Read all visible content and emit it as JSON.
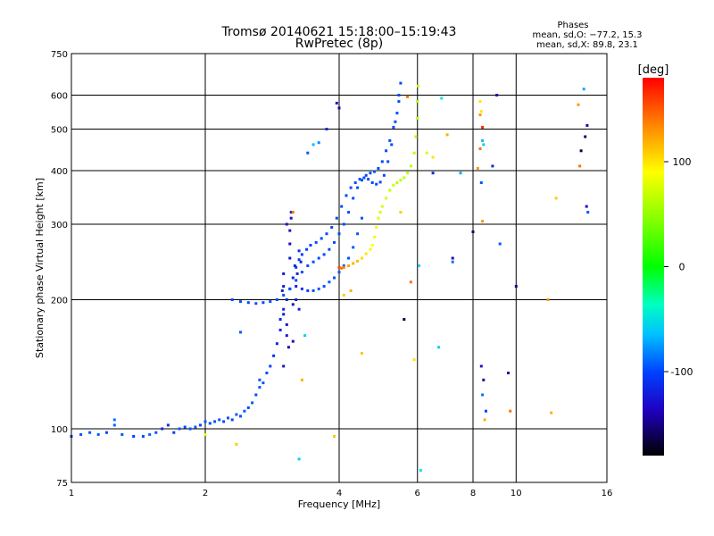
{
  "chart_data": {
    "type": "scatter",
    "title": "Tromsø 20140621 15:18:00–15:19:43",
    "subtitle": "RwPretec (8p)",
    "xlabel": "Frequency [MHz]",
    "ylabel": "Stationary phase Virtual Height [km]",
    "x_scale": "log",
    "y_scale": "log",
    "xlim": [
      1,
      16
    ],
    "ylim": [
      75,
      750
    ],
    "x_ticks": [
      1,
      2,
      4,
      6,
      8,
      10,
      16
    ],
    "x_tick_labels": [
      "1",
      "2",
      "4",
      "6",
      "8",
      "10",
      "16"
    ],
    "y_ticks": [
      75,
      100,
      200,
      300,
      400,
      500,
      600,
      750
    ],
    "y_tick_labels": [
      "75",
      "100",
      "200",
      "300",
      "400",
      "500",
      "600",
      "750"
    ],
    "grid": true,
    "stats": {
      "header": "Phases",
      "line1": "mean, sd,O: −77.2, 15.3",
      "line2": "mean, sd,X:  89.8, 23.1"
    },
    "colorbar": {
      "label": "[deg]",
      "range": [
        -180,
        180
      ],
      "ticks": [
        100,
        0,
        -100
      ],
      "tick_labels": [
        "100",
        "0",
        "-100"
      ]
    },
    "series_o_low": [
      [
        1.0,
        96,
        -95
      ],
      [
        1.05,
        97,
        -90
      ],
      [
        1.1,
        98,
        -92
      ],
      [
        1.15,
        97,
        -88
      ],
      [
        1.2,
        98,
        -95
      ],
      [
        1.25,
        102,
        -85
      ],
      [
        1.3,
        97,
        -92
      ],
      [
        1.38,
        96,
        -100
      ],
      [
        1.45,
        96,
        -95
      ],
      [
        1.5,
        97,
        -85
      ],
      [
        1.55,
        98,
        -92
      ],
      [
        1.6,
        100,
        -110
      ],
      [
        1.65,
        102,
        -105
      ],
      [
        1.7,
        98,
        -100
      ],
      [
        1.75,
        100,
        -90
      ],
      [
        1.8,
        101,
        -95
      ],
      [
        1.85,
        100,
        -92
      ],
      [
        1.9,
        101,
        -88
      ],
      [
        1.95,
        102,
        -95
      ],
      [
        2.0,
        104,
        -90
      ],
      [
        2.05,
        103,
        -95
      ],
      [
        2.1,
        104,
        -92
      ],
      [
        2.15,
        105,
        -90
      ],
      [
        2.2,
        104,
        -95
      ],
      [
        2.25,
        106,
        -92
      ],
      [
        2.3,
        105,
        -95
      ],
      [
        2.35,
        108,
        -90
      ],
      [
        2.4,
        107,
        -92
      ],
      [
        2.45,
        110,
        -90
      ],
      [
        2.5,
        112,
        -95
      ],
      [
        2.55,
        115,
        -90
      ],
      [
        2.6,
        120,
        -95
      ],
      [
        2.65,
        125,
        -90
      ],
      [
        2.7,
        128,
        -92
      ],
      [
        2.75,
        135,
        -95
      ],
      [
        2.8,
        140,
        -100
      ],
      [
        2.85,
        148,
        -105
      ],
      [
        2.9,
        158,
        -110
      ],
      [
        2.95,
        170,
        -110
      ],
      [
        3.0,
        185,
        -115
      ],
      [
        3.05,
        200,
        -110
      ],
      [
        3.1,
        212,
        -115
      ],
      [
        3.15,
        225,
        -110
      ],
      [
        3.2,
        238,
        -100
      ],
      [
        3.25,
        248,
        -100
      ],
      [
        3.3,
        255,
        -100
      ],
      [
        3.38,
        262,
        -100
      ],
      [
        3.45,
        268,
        -98
      ],
      [
        3.55,
        272,
        -95
      ],
      [
        3.65,
        278,
        -95
      ],
      [
        3.75,
        285,
        -95
      ],
      [
        3.85,
        295,
        -95
      ],
      [
        3.95,
        310,
        -95
      ],
      [
        4.05,
        330,
        -95
      ],
      [
        4.15,
        350,
        -95
      ],
      [
        4.25,
        365,
        -95
      ],
      [
        4.35,
        375,
        -92
      ],
      [
        4.45,
        382,
        -95
      ],
      [
        4.55,
        385,
        -95
      ],
      [
        4.65,
        382,
        -95
      ],
      [
        4.75,
        375,
        -95
      ],
      [
        4.85,
        372,
        -95
      ],
      [
        4.95,
        376,
        -95
      ],
      [
        5.05,
        390,
        -95
      ],
      [
        5.15,
        420,
        -95
      ],
      [
        5.25,
        460,
        -95
      ],
      [
        5.35,
        520,
        -95
      ],
      [
        5.45,
        580,
        -95
      ],
      [
        5.5,
        640,
        -95
      ]
    ],
    "series_o_mid": [
      [
        2.3,
        200,
        -95
      ],
      [
        2.4,
        198,
        -92
      ],
      [
        2.5,
        197,
        -95
      ],
      [
        2.6,
        196,
        -92
      ],
      [
        2.7,
        197,
        -95
      ],
      [
        2.8,
        198,
        -92
      ],
      [
        2.9,
        200,
        -95
      ],
      [
        3.0,
        205,
        -95
      ],
      [
        3.1,
        212,
        -95
      ],
      [
        3.2,
        222,
        -95
      ],
      [
        3.3,
        232,
        -95
      ],
      [
        3.4,
        240,
        -95
      ],
      [
        3.5,
        245,
        -92
      ],
      [
        3.6,
        250,
        -95
      ],
      [
        3.7,
        255,
        -95
      ],
      [
        3.8,
        262,
        -95
      ],
      [
        3.9,
        272,
        -95
      ],
      [
        4.0,
        285,
        -95
      ],
      [
        4.1,
        300,
        -95
      ],
      [
        4.2,
        320,
        -95
      ],
      [
        4.3,
        345,
        -95
      ],
      [
        4.4,
        365,
        -95
      ],
      [
        4.5,
        380,
        -92
      ],
      [
        4.6,
        390,
        -95
      ],
      [
        4.7,
        395,
        -95
      ],
      [
        4.8,
        398,
        -95
      ],
      [
        4.9,
        405,
        -95
      ],
      [
        5.0,
        420,
        -95
      ],
      [
        5.1,
        445,
        -95
      ],
      [
        5.2,
        470,
        -95
      ],
      [
        5.3,
        505,
        -95
      ],
      [
        5.4,
        545,
        -95
      ],
      [
        5.45,
        600,
        -95
      ]
    ],
    "series_o_lower": [
      [
        3.2,
        215,
        -110
      ],
      [
        3.3,
        212,
        -105
      ],
      [
        3.4,
        210,
        -100
      ],
      [
        3.5,
        210,
        -95
      ],
      [
        3.6,
        212,
        -92
      ],
      [
        3.7,
        215,
        -90
      ],
      [
        3.8,
        220,
        -90
      ],
      [
        3.9,
        225,
        -92
      ],
      [
        4.0,
        232,
        -90
      ],
      [
        4.1,
        240,
        -90
      ],
      [
        4.2,
        250,
        -92
      ],
      [
        4.3,
        265,
        -90
      ],
      [
        4.4,
        285,
        -90
      ],
      [
        4.5,
        310,
        -92
      ]
    ],
    "series_spread": [
      [
        3.0,
        215,
        -115
      ],
      [
        3.0,
        230,
        -120
      ],
      [
        3.0,
        190,
        -110
      ],
      [
        3.05,
        175,
        -120
      ],
      [
        3.05,
        165,
        -115
      ],
      [
        3.1,
        250,
        -120
      ],
      [
        3.1,
        270,
        -125
      ],
      [
        3.1,
        290,
        -120
      ],
      [
        3.12,
        310,
        -120
      ],
      [
        3.12,
        320,
        -115
      ],
      [
        3.15,
        195,
        -120
      ],
      [
        3.15,
        160,
        -125
      ],
      [
        3.08,
        155,
        -125
      ],
      [
        3.18,
        240,
        -110
      ],
      [
        3.22,
        230,
        -110
      ],
      [
        3.25,
        260,
        -105
      ],
      [
        3.28,
        245,
        -110
      ],
      [
        3.05,
        300,
        -120
      ],
      [
        2.98,
        210,
        -118
      ],
      [
        3.0,
        140,
        -120
      ],
      [
        2.95,
        180,
        -110
      ],
      [
        3.2,
        200,
        -115
      ],
      [
        3.25,
        190,
        -112
      ]
    ],
    "series_x": [
      [
        4.0,
        238,
        160
      ],
      [
        4.05,
        237,
        150
      ],
      [
        4.1,
        238,
        145
      ],
      [
        4.2,
        240,
        135
      ],
      [
        4.3,
        243,
        130
      ],
      [
        4.4,
        246,
        125
      ],
      [
        4.5,
        250,
        115
      ],
      [
        4.6,
        256,
        110
      ],
      [
        4.7,
        262,
        105
      ],
      [
        4.75,
        268,
        100
      ],
      [
        4.8,
        280,
        95
      ],
      [
        4.85,
        295,
        90
      ],
      [
        4.9,
        310,
        85
      ],
      [
        4.95,
        320,
        80
      ],
      [
        5.0,
        330,
        80
      ],
      [
        5.1,
        345,
        80
      ],
      [
        5.2,
        360,
        75
      ],
      [
        5.3,
        370,
        75
      ],
      [
        5.4,
        375,
        70
      ],
      [
        5.5,
        380,
        70
      ],
      [
        5.6,
        385,
        75
      ],
      [
        5.7,
        395,
        70
      ],
      [
        5.8,
        410,
        70
      ],
      [
        5.9,
        440,
        70
      ],
      [
        5.95,
        480,
        70
      ],
      [
        6.0,
        530,
        65
      ],
      [
        6.0,
        580,
        65
      ],
      [
        6.02,
        630,
        70
      ]
    ],
    "series_scattered": [
      [
        1.25,
        105,
        -80
      ],
      [
        2.0,
        97,
        90
      ],
      [
        2.35,
        92,
        120
      ],
      [
        2.4,
        168,
        -90
      ],
      [
        2.65,
        130,
        -90
      ],
      [
        3.15,
        320,
        150
      ],
      [
        3.25,
        85,
        -40
      ],
      [
        3.3,
        130,
        130
      ],
      [
        3.35,
        165,
        -40
      ],
      [
        3.4,
        440,
        -90
      ],
      [
        3.5,
        460,
        -50
      ],
      [
        3.6,
        465,
        -70
      ],
      [
        3.75,
        500,
        -110
      ],
      [
        3.9,
        96,
        120
      ],
      [
        3.95,
        575,
        -120
      ],
      [
        4.0,
        560,
        -130
      ],
      [
        4.1,
        205,
        120
      ],
      [
        4.25,
        210,
        130
      ],
      [
        4.5,
        150,
        120
      ],
      [
        5.5,
        320,
        120
      ],
      [
        5.6,
        180,
        -160
      ],
      [
        5.7,
        595,
        150
      ],
      [
        5.8,
        220,
        150
      ],
      [
        5.9,
        145,
        110
      ],
      [
        6.05,
        240,
        -40
      ],
      [
        6.1,
        80,
        -30
      ],
      [
        6.3,
        440,
        80
      ],
      [
        6.5,
        395,
        -110
      ],
      [
        6.5,
        430,
        110
      ],
      [
        6.7,
        155,
        -40
      ],
      [
        6.8,
        590,
        -30
      ],
      [
        7.0,
        485,
        130
      ],
      [
        7.2,
        250,
        -130
      ],
      [
        7.2,
        245,
        -80
      ],
      [
        7.5,
        395,
        -60
      ],
      [
        8.0,
        288,
        -150
      ],
      [
        8.2,
        405,
        140
      ],
      [
        8.3,
        580,
        110
      ],
      [
        8.35,
        550,
        110
      ],
      [
        8.3,
        540,
        140
      ],
      [
        8.4,
        505,
        170
      ],
      [
        8.4,
        470,
        -50
      ],
      [
        8.45,
        460,
        -40
      ],
      [
        8.3,
        450,
        150
      ],
      [
        8.35,
        375,
        -90
      ],
      [
        8.4,
        305,
        140
      ],
      [
        8.35,
        140,
        -120
      ],
      [
        8.45,
        130,
        -130
      ],
      [
        8.4,
        120,
        -80
      ],
      [
        8.5,
        105,
        130
      ],
      [
        8.55,
        110,
        -100
      ],
      [
        8.85,
        410,
        -110
      ],
      [
        9.05,
        600,
        -130
      ],
      [
        9.2,
        270,
        -90
      ],
      [
        9.6,
        135,
        -130
      ],
      [
        9.7,
        110,
        150
      ],
      [
        10.0,
        215,
        -140
      ],
      [
        11.8,
        200,
        140
      ],
      [
        12.0,
        109,
        130
      ],
      [
        12.3,
        345,
        120
      ],
      [
        13.8,
        570,
        140
      ],
      [
        13.9,
        410,
        150
      ],
      [
        14.0,
        445,
        -160
      ],
      [
        14.2,
        620,
        -60
      ],
      [
        14.3,
        480,
        -150
      ],
      [
        14.4,
        330,
        -120
      ],
      [
        14.45,
        510,
        -130
      ],
      [
        14.5,
        320,
        -90
      ]
    ]
  }
}
